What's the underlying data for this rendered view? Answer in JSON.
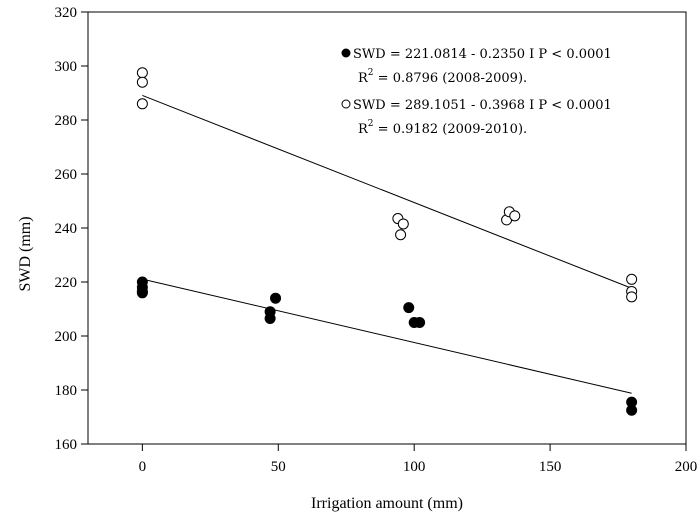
{
  "chart_data": {
    "type": "scatter",
    "xlabel": "Irrigation amount (mm)",
    "ylabel": "SWD (mm)",
    "xlim": [
      -20,
      200
    ],
    "ylim": [
      160,
      320
    ],
    "xticks": [
      "0",
      "50",
      "100",
      "150",
      "200"
    ],
    "xtick_values": [
      0,
      50,
      100,
      150,
      200
    ],
    "yticks": [
      "160",
      "180",
      "200",
      "220",
      "240",
      "260",
      "280",
      "300",
      "320"
    ],
    "ytick_values": [
      160,
      180,
      200,
      220,
      240,
      260,
      280,
      300,
      320
    ],
    "grid": false,
    "legend_position": "top-right",
    "series": [
      {
        "marker": "filled-circle",
        "color": "#000000",
        "legend_line1": "SWD = 221.0814 - 0.2350 I P < 0.0001",
        "legend_line2_prefix": "R",
        "legend_line2_sup": "2",
        "legend_line2_suffix": " = 0.8796 (2008-2009).",
        "points": [
          [
            0,
            220
          ],
          [
            0,
            218
          ],
          [
            0,
            216.5
          ],
          [
            0,
            216
          ],
          [
            47,
            209
          ],
          [
            47,
            206.5
          ],
          [
            49,
            214
          ],
          [
            98,
            210.5
          ],
          [
            100,
            205
          ],
          [
            102,
            205
          ],
          [
            180,
            175.5
          ],
          [
            180,
            172.5
          ]
        ],
        "fit": {
          "intercept": 221.0814,
          "slope": -0.235,
          "x_range": [
            0,
            180
          ]
        }
      },
      {
        "marker": "open-circle",
        "color": "#000000",
        "legend_line1": "SWD = 289.1051 - 0.3968 I P < 0.0001",
        "legend_line2_prefix": "R",
        "legend_line2_sup": "2",
        "legend_line2_suffix": " = 0.9182 (2009-2010).",
        "points": [
          [
            0,
            297.5
          ],
          [
            0,
            294
          ],
          [
            0,
            286
          ],
          [
            94,
            243.5
          ],
          [
            96,
            241.5
          ],
          [
            95,
            237.5
          ],
          [
            134,
            243
          ],
          [
            135,
            246
          ],
          [
            137,
            244.5
          ],
          [
            180,
            221
          ],
          [
            180,
            216.5
          ],
          [
            180,
            214.5
          ]
        ],
        "fit": {
          "intercept": 289.1051,
          "slope": -0.3968,
          "x_range": [
            0,
            180
          ]
        }
      }
    ]
  }
}
